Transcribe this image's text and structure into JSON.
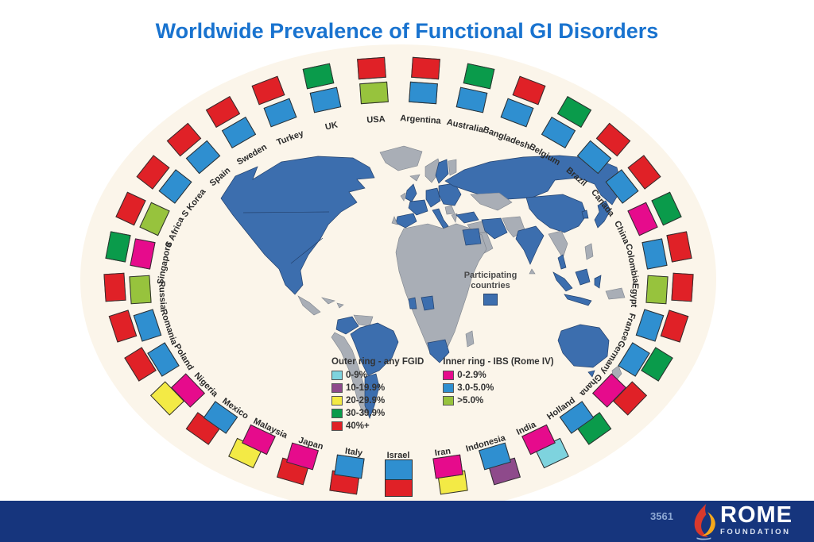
{
  "title": "Worldwide Prevalence of Functional GI Disorders",
  "map": {
    "participating_label_line1": "Participating",
    "participating_label_line2": "countries",
    "participating_color": "#3c6eae",
    "non_participating_color": "#a9aeb6"
  },
  "legend": {
    "outer": {
      "title": "Outer ring - any FGID",
      "items": [
        {
          "label": "0-9%",
          "color": "#7ed3de"
        },
        {
          "label": "10-19.9%",
          "color": "#8e4a8b"
        },
        {
          "label": "20-29.9%",
          "color": "#f3ea45"
        },
        {
          "label": "30-39.9%",
          "color": "#0a9b4b"
        },
        {
          "label": "40%+",
          "color": "#e02127"
        }
      ]
    },
    "inner": {
      "title": "Inner ring - IBS (Rome IV)",
      "items": [
        {
          "label": "0-2.9%",
          "color": "#e60b8c"
        },
        {
          "label": "3.0-5.0%",
          "color": "#2f8fd0"
        },
        {
          "label": ">5.0%",
          "color": "#97c33d"
        }
      ]
    }
  },
  "countries": [
    {
      "name": "Argentina",
      "outer": "40%+",
      "inner": "3.0-5.0%"
    },
    {
      "name": "Australia",
      "outer": "30-39.9%",
      "inner": "3.0-5.0%"
    },
    {
      "name": "Bangladesh",
      "outer": "40%+",
      "inner": "3.0-5.0%"
    },
    {
      "name": "Belgium",
      "outer": "30-39.9%",
      "inner": "3.0-5.0%"
    },
    {
      "name": "Brazil",
      "outer": "40%+",
      "inner": "3.0-5.0%"
    },
    {
      "name": "Canada",
      "outer": "40%+",
      "inner": "3.0-5.0%"
    },
    {
      "name": "China",
      "outer": "30-39.9%",
      "inner": "0-2.9%"
    },
    {
      "name": "Colombia",
      "outer": "40%+",
      "inner": "3.0-5.0%"
    },
    {
      "name": "Egypt",
      "outer": "40%+",
      "inner": ">5.0%"
    },
    {
      "name": "France",
      "outer": "40%+",
      "inner": "3.0-5.0%"
    },
    {
      "name": "Germany",
      "outer": "30-39.9%",
      "inner": "3.0-5.0%"
    },
    {
      "name": "Ghana",
      "outer": "40%+",
      "inner": "0-2.9%"
    },
    {
      "name": "Holland",
      "outer": "30-39.9%",
      "inner": "3.0-5.0%"
    },
    {
      "name": "India",
      "outer": "0-9%",
      "inner": "0-2.9%"
    },
    {
      "name": "Indonesia",
      "outer": "10-19.9%",
      "inner": "3.0-5.0%"
    },
    {
      "name": "Iran",
      "outer": "20-29.9%",
      "inner": "0-2.9%"
    },
    {
      "name": "Israel",
      "outer": "40%+",
      "inner": "3.0-5.0%"
    },
    {
      "name": "Italy",
      "outer": "40%+",
      "inner": "3.0-5.0%"
    },
    {
      "name": "Japan",
      "outer": "40%+",
      "inner": "0-2.9%"
    },
    {
      "name": "Malaysia",
      "outer": "20-29.9%",
      "inner": "0-2.9%"
    },
    {
      "name": "Mexico",
      "outer": "40%+",
      "inner": "3.0-5.0%"
    },
    {
      "name": "Nigeria",
      "outer": "20-29.9%",
      "inner": "0-2.9%"
    },
    {
      "name": "Poland",
      "outer": "40%+",
      "inner": "3.0-5.0%"
    },
    {
      "name": "Romania",
      "outer": "40%+",
      "inner": "3.0-5.0%"
    },
    {
      "name": "Russia",
      "outer": "40%+",
      "inner": ">5.0%"
    },
    {
      "name": "Singapore",
      "outer": "30-39.9%",
      "inner": "0-2.9%"
    },
    {
      "name": "S Africa",
      "outer": "40%+",
      "inner": ">5.0%"
    },
    {
      "name": "S Korea",
      "outer": "40%+",
      "inner": "3.0-5.0%"
    },
    {
      "name": "Spain",
      "outer": "40%+",
      "inner": "3.0-5.0%"
    },
    {
      "name": "Sweden",
      "outer": "40%+",
      "inner": "3.0-5.0%"
    },
    {
      "name": "Turkey",
      "outer": "40%+",
      "inner": "3.0-5.0%"
    },
    {
      "name": "UK",
      "outer": "30-39.9%",
      "inner": "3.0-5.0%"
    },
    {
      "name": "USA",
      "outer": "40%+",
      "inner": ">5.0%"
    }
  ],
  "footer": {
    "slide_number": "3561",
    "brand": "ROME",
    "brand_sub": "FOUNDATION"
  }
}
